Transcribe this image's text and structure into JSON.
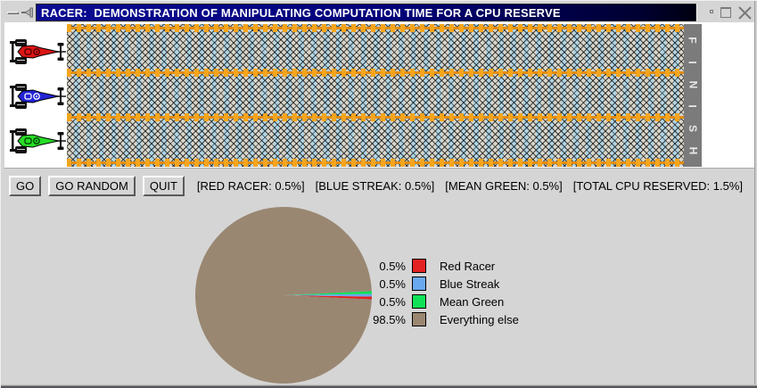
{
  "window": {
    "title": "RACER:  DEMONSTRATION OF MANIPULATING COMPUTATION TIME FOR A CPU RESERVE"
  },
  "track": {
    "finish_label": "FINISH",
    "colors": {
      "stripe_blue": "#b0d4e4",
      "stripe_gray": "#d8d5ca",
      "marker_orange": "#f4a51d",
      "finish_bar_gray": "#7b7b7b"
    },
    "racers": [
      {
        "name": "Red Racer",
        "color": "#dd1515",
        "decal": "#4a0000"
      },
      {
        "name": "Blue Streak",
        "color": "#2323d6",
        "decal": "#ffffff"
      },
      {
        "name": "Mean Green",
        "color": "#27dd27",
        "decal": "#003a00"
      }
    ]
  },
  "toolbar": {
    "buttons": [
      {
        "label": "GO"
      },
      {
        "label": "GO RANDOM"
      },
      {
        "label": "QUIT"
      }
    ],
    "status": [
      "[RED RACER: 0.5%]",
      "[BLUE STREAK: 0.5%]",
      "[MEAN GREEN: 0.5%]",
      "[TOTAL CPU RESERVED: 1.5%]"
    ]
  },
  "chart_data": {
    "type": "pie",
    "title": "",
    "legend_position": "right",
    "start_angle_deg": -2.7,
    "direction": "ccw",
    "slices": [
      {
        "label": "Red Racer",
        "value": 0.5,
        "pct_label": "0.5%",
        "color": "#e32222"
      },
      {
        "label": "Blue Streak",
        "value": 0.5,
        "pct_label": "0.5%",
        "color": "#6aa8f0"
      },
      {
        "label": "Mean Green",
        "value": 0.5,
        "pct_label": "0.5%",
        "color": "#10e257"
      },
      {
        "label": "Everything else",
        "value": 98.5,
        "pct_label": "98.5%",
        "color": "#9a8772"
      }
    ]
  }
}
